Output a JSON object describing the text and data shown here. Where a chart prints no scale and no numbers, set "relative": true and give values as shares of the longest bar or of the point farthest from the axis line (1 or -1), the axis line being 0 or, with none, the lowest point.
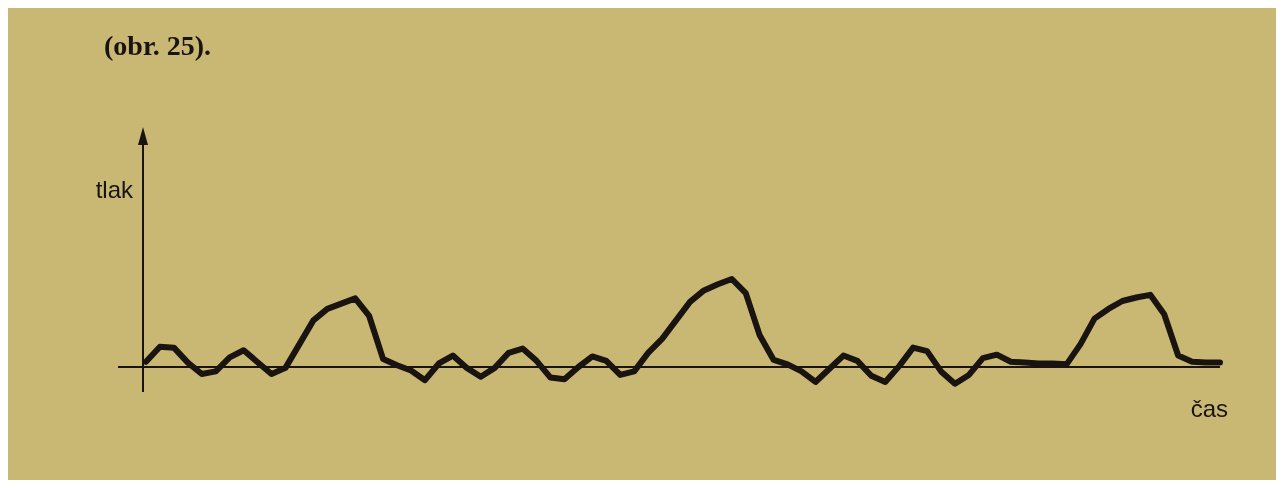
{
  "chart_data": {
    "type": "line",
    "xlabel": "čas",
    "ylabel": "tlak",
    "annotations": [
      "(obr. 25)."
    ],
    "relative": true,
    "grid": false,
    "legend": false,
    "marker": "none",
    "line_style": "solid",
    "categories": [
      null,
      null,
      null,
      null,
      null,
      null,
      null,
      null,
      null,
      null,
      null,
      null,
      null,
      null,
      null,
      null,
      null,
      null,
      null,
      null,
      null,
      null,
      null,
      null,
      null,
      null,
      null,
      null,
      null,
      null,
      null,
      null,
      null,
      null,
      null,
      null,
      null,
      null,
      null,
      null,
      null,
      null,
      null,
      null,
      null,
      null,
      null,
      null,
      null,
      null,
      null,
      null,
      null,
      null,
      null,
      null,
      null,
      null,
      null,
      null,
      null,
      null,
      null,
      null,
      null,
      null,
      null,
      null,
      null,
      null,
      null,
      null,
      null,
      null,
      null,
      null,
      null,
      null
    ],
    "series": [
      {
        "color": "#1a1410",
        "values": [
          0.06,
          0.23,
          0.22,
          0.05,
          -0.08,
          -0.05,
          0.11,
          0.19,
          0.055,
          -0.08,
          -0.01,
          0.26,
          0.53,
          0.66,
          0.72,
          0.78,
          0.58,
          0.09,
          0.02,
          -0.04,
          -0.15,
          0.04,
          0.13,
          -0.01,
          -0.11,
          -0.01,
          0.16,
          0.21,
          0.07,
          -0.12,
          -0.14,
          0,
          0.12,
          0.07,
          -0.09,
          -0.05,
          0.16,
          0.32,
          0.53,
          0.74,
          0.87,
          0.94,
          1,
          0.84,
          0.36,
          0.08,
          0.03,
          -0.05,
          -0.17,
          -0.02,
          0.13,
          0.07,
          -0.1,
          -0.17,
          0.01,
          0.22,
          0.18,
          -0.05,
          -0.19,
          -0.09,
          0.1,
          0.14,
          0.06,
          0.05,
          0.04,
          0.04,
          0.03,
          0.26,
          0.55,
          0.66,
          0.75,
          0.79,
          0.82,
          0.6,
          0.13,
          0.06,
          0.05,
          0.05
        ]
      }
    ]
  }
}
